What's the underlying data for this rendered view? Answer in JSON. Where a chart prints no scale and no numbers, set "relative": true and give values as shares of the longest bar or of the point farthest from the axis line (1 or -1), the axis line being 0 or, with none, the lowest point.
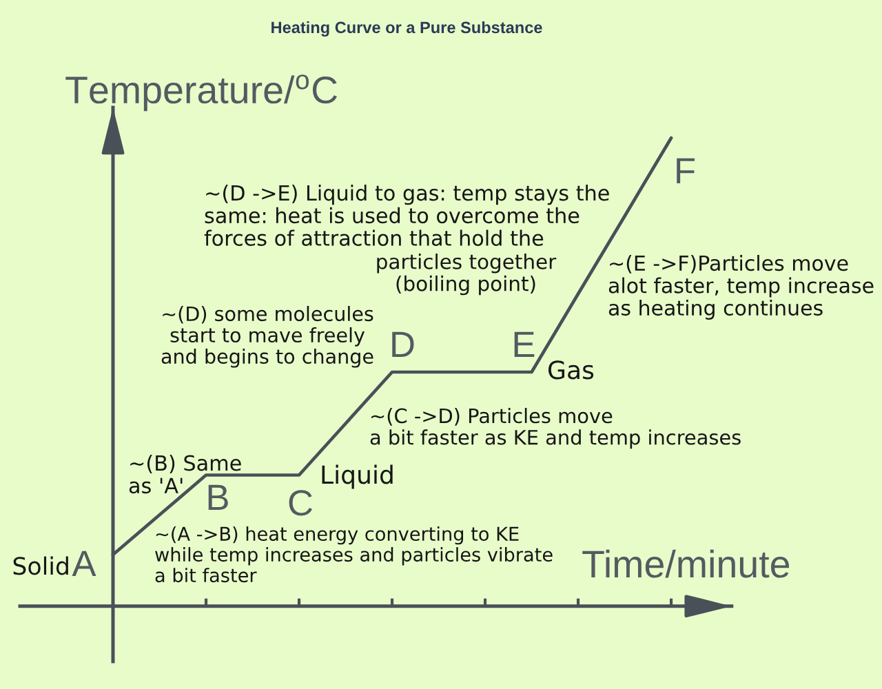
{
  "chart_data": {
    "type": "line",
    "title": "Heating Curve or a Pure Substance",
    "xlabel": "Time/minute",
    "ylabel": "Temperature/$^{o}$C",
    "relative": true,
    "categories": [
      null,
      null,
      null,
      null,
      null,
      null,
      null,
      null,
      null,
      null,
      null,
      null,
      null
    ],
    "values": [
      0.11,
      0.195,
      0.28,
      0.28,
      0.28,
      0.39,
      0.5,
      0.5,
      0.5,
      0.5,
      0.667,
      0.833,
      1
    ],
    "color": "#4a5058",
    "line_style": "solid",
    "annotations": [
      "A",
      "B",
      "C",
      "D",
      "E",
      "F",
      "Solid",
      "Liquid",
      "Gas",
      "~(A ->B) heat energy converting to KE\nwhile temp increases and particles vibrate\na bit faster",
      "~(B) Same\nas 'A'",
      "~(C ->D) Particles move\na bit faster as KE and temp increases",
      "~(D) some molecules\nstart to mave freely\nand begins to change",
      "~(D ->E) Liquid to gas: temp stays the\nsame: heat is used to overcome the\nforces of attraction that hold the",
      "particles together\n(boiling point)",
      "~(E ->F)Particles move\nalot faster, temp increase\nas heating continues"
    ]
  }
}
